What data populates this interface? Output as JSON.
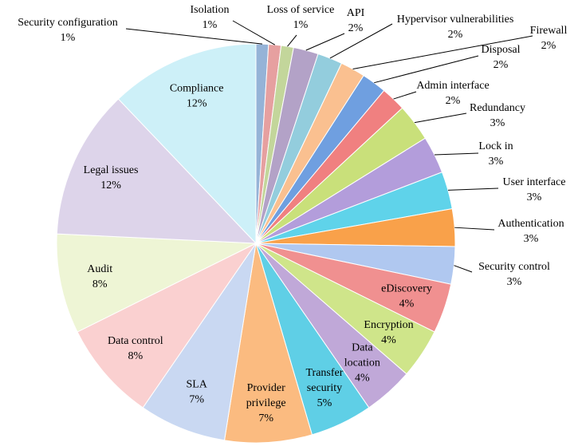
{
  "chart_data": {
    "type": "pie",
    "categories": [
      "Security configuration",
      "Isolation",
      "Loss of service",
      "API",
      "Hypervisor vulnerabilities",
      "Firewall",
      "Disposal",
      "Admin interface",
      "Redundancy",
      "Lock in",
      "User interface",
      "Authentication",
      "Security control",
      "eDiscovery",
      "Encryption",
      "Data\nlocation",
      "Transfer\nsecurity",
      "Provider\nprivilege",
      "SLA",
      "Data control",
      "Audit",
      "Legal issues",
      "Compliance"
    ],
    "values": [
      1,
      1,
      1,
      2,
      2,
      2,
      2,
      2,
      3,
      3,
      3,
      3,
      3,
      4,
      4,
      4,
      5,
      7,
      7,
      8,
      8,
      12,
      12
    ],
    "value_labels": [
      "1%",
      "1%",
      "1%",
      "2%",
      "2%",
      "2%",
      "2%",
      "2%",
      "3%",
      "3%",
      "3%",
      "3%",
      "3%",
      "4%",
      "4%",
      "4%",
      "5%",
      "7%",
      "7%",
      "8%",
      "8%",
      "12%",
      "12%"
    ],
    "colors": [
      "#95b3d7",
      "#e6a0a0",
      "#c3d69b",
      "#b3a2c7",
      "#93cddd",
      "#fac090",
      "#6f9fe0",
      "#f08080",
      "#c9e07a",
      "#b39ddb",
      "#5fd3ea",
      "#f9a14a",
      "#b0c8f0",
      "#f09090",
      "#cfe58a",
      "#c0a8d8",
      "#5fcfe6",
      "#fbbb80",
      "#c9d8f2",
      "#fad0d0",
      "#eef5d5",
      "#ddd4ea",
      "#cdf0f8"
    ]
  }
}
